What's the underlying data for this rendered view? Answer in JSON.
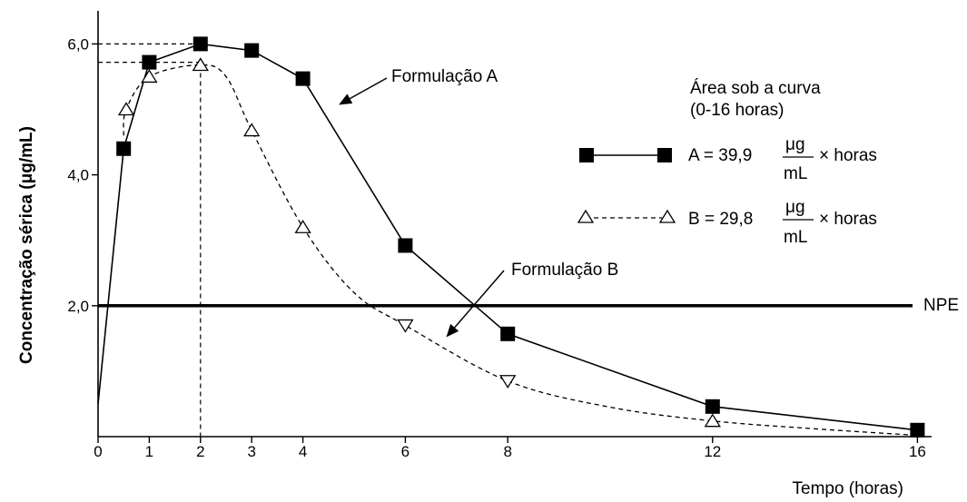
{
  "chart_data": {
    "type": "line",
    "xlabel": "Tempo (horas)",
    "ylabel": "Concentração sérica (μg/mL)",
    "x_ticks": [
      {
        "value": 0,
        "label": "0"
      },
      {
        "value": 1,
        "label": "1"
      },
      {
        "value": 2,
        "label": "2"
      },
      {
        "value": 3,
        "label": "3"
      },
      {
        "value": 4,
        "label": "4"
      },
      {
        "value": 6,
        "label": "6"
      },
      {
        "value": 8,
        "label": "8"
      },
      {
        "value": 12,
        "label": "12"
      },
      {
        "value": 16,
        "label": "16"
      }
    ],
    "y_ticks": [
      {
        "value": 2.0,
        "label": "2,0"
      },
      {
        "value": 4.0,
        "label": "4,0"
      },
      {
        "value": 6.0,
        "label": "6,0"
      }
    ],
    "xlim": [
      0,
      16
    ],
    "ylim": [
      0,
      6.5
    ],
    "grid": false,
    "series": [
      {
        "name": "Formulação A",
        "line_style": "solid",
        "marker": "filled-square",
        "curve_points": [
          [
            0,
            0.5
          ],
          [
            0.5,
            4.4
          ],
          [
            1,
            5.72
          ],
          [
            2,
            6.0
          ],
          [
            3,
            5.9
          ],
          [
            4,
            5.47
          ],
          [
            6,
            2.92
          ],
          [
            8,
            1.57
          ],
          [
            12,
            0.46
          ],
          [
            16,
            0.1
          ]
        ],
        "points": [
          [
            0.5,
            4.4
          ],
          [
            1,
            5.72
          ],
          [
            2,
            6.0
          ],
          [
            3,
            5.9
          ],
          [
            4,
            5.47
          ],
          [
            6,
            2.92
          ],
          [
            8,
            1.57
          ],
          [
            12,
            0.46
          ],
          [
            16,
            0.1
          ]
        ]
      },
      {
        "name": "Formulação B",
        "line_style": "dashed",
        "marker": "open-triangle",
        "curve_points": [
          [
            0.5,
            4.6
          ],
          [
            0.55,
            5.0
          ],
          [
            1,
            5.5
          ],
          [
            2,
            5.68
          ],
          [
            2.5,
            5.5
          ],
          [
            3,
            4.68
          ],
          [
            4,
            3.2
          ],
          [
            5,
            2.2
          ],
          [
            6,
            1.7
          ],
          [
            8,
            0.85
          ],
          [
            10,
            0.45
          ],
          [
            12,
            0.24
          ],
          [
            14,
            0.12
          ],
          [
            16,
            0.02
          ]
        ],
        "points": [
          {
            "x": 0.55,
            "y": 5.0,
            "dir": "up"
          },
          {
            "x": 1,
            "y": 5.5,
            "dir": "up"
          },
          {
            "x": 2,
            "y": 5.68,
            "dir": "up"
          },
          {
            "x": 3,
            "y": 4.68,
            "dir": "up"
          },
          {
            "x": 4,
            "y": 3.2,
            "dir": "up"
          },
          {
            "x": 6,
            "y": 1.7,
            "dir": "down"
          },
          {
            "x": 8,
            "y": 0.85,
            "dir": "down"
          },
          {
            "x": 12,
            "y": 0.24,
            "dir": "up"
          }
        ]
      }
    ],
    "reference_line": {
      "y": 2.0,
      "label": "NPE"
    },
    "guide_lines": [
      {
        "y": 6.0,
        "x_to": 2
      },
      {
        "y": 5.72,
        "x_to": 2
      },
      {
        "x": 2,
        "y_from": 0,
        "y_to": 5.68
      }
    ],
    "annotations": [
      {
        "text": "Formulação A",
        "arrow_to": {
          "x": 4.7,
          "y": 5.07
        }
      },
      {
        "text": "Formulação B",
        "arrow_to": {
          "x": 6.8,
          "y": 1.52
        }
      }
    ],
    "legend": {
      "title_line1": "Área sob a curva",
      "title_line2": "(0-16 horas)",
      "entries": [
        {
          "series": "A",
          "prefix": "A = 39,9",
          "numerator": "μg",
          "denominator": "mL",
          "suffix": "× horas"
        },
        {
          "series": "B",
          "prefix": "B = 29,8",
          "numerator": "μg",
          "denominator": "mL",
          "suffix": "× horas"
        }
      ],
      "placement": "top-right"
    },
    "colors": {
      "line": "#000000",
      "background": "#ffffff"
    }
  }
}
